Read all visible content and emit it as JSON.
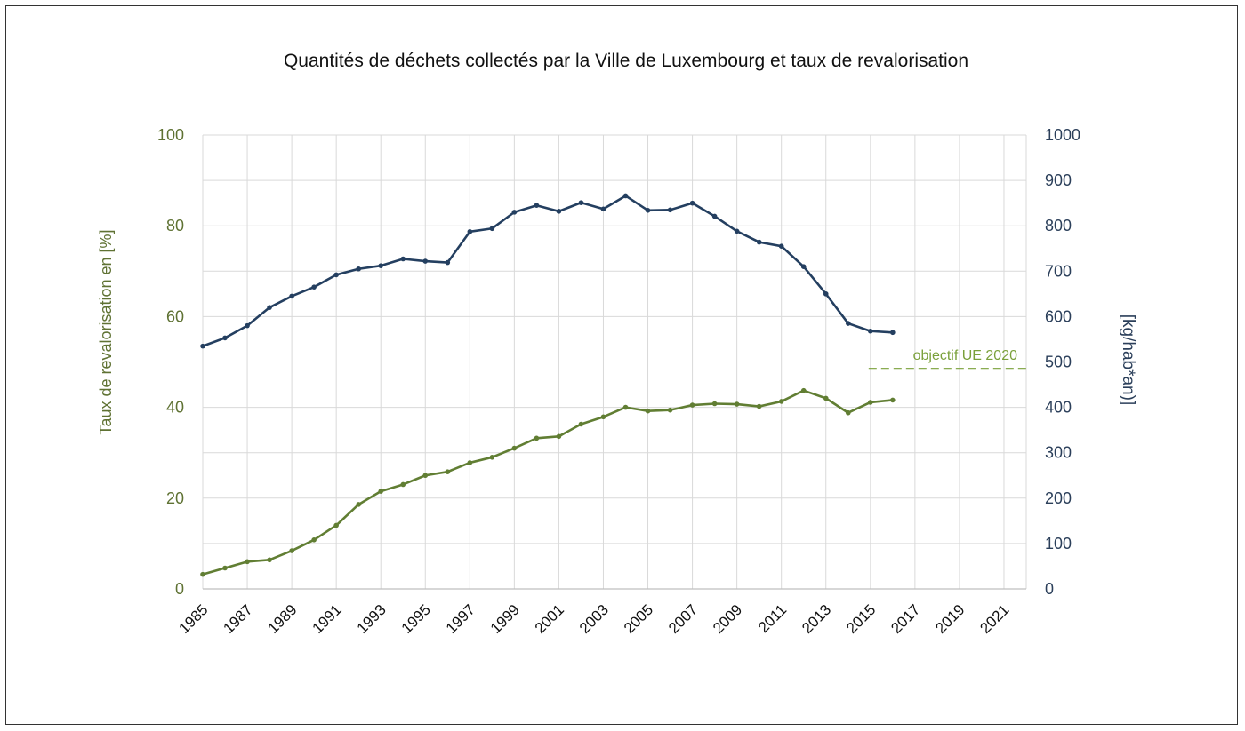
{
  "chart_data": {
    "type": "line",
    "title": "Quantités de déchets collectés par la Ville de Luxembourg et taux de revalorisation",
    "ylabel_left": "Taux de revalorisation en [%]",
    "ylabel_right": "[kg/hab*an)]",
    "ylim_left": [
      0,
      100
    ],
    "ylim_right": [
      0,
      1000
    ],
    "xlim": [
      1985,
      2022
    ],
    "grid": true,
    "left_ticks": [
      "0",
      "20",
      "40",
      "60",
      "80",
      "100"
    ],
    "right_ticks": [
      "0",
      "100",
      "200",
      "300",
      "400",
      "500",
      "600",
      "700",
      "800",
      "900",
      "1000"
    ],
    "x_ticks": [
      "1985",
      "1987",
      "1989",
      "1991",
      "1993",
      "1995",
      "1997",
      "1999",
      "2001",
      "2003",
      "2005",
      "2007",
      "2009",
      "2011",
      "2013",
      "2015",
      "2017",
      "2019",
      "2021"
    ],
    "x": [
      1985,
      1986,
      1987,
      1988,
      1989,
      1990,
      1991,
      1992,
      1993,
      1994,
      1995,
      1996,
      1997,
      1998,
      1999,
      2000,
      2001,
      2002,
      2003,
      2004,
      2005,
      2006,
      2007,
      2008,
      2009,
      2010,
      2011,
      2012,
      2013,
      2014,
      2015,
      2016
    ],
    "series": [
      {
        "axis": "right",
        "color": "#243f60",
        "values": [
          535,
          553,
          580,
          620,
          645,
          665,
          692,
          705,
          712,
          727,
          722,
          719,
          787,
          794,
          830,
          845,
          832,
          851,
          837,
          866,
          834,
          835,
          850,
          821,
          788,
          764,
          755,
          710,
          650,
          585,
          568,
          565
        ]
      },
      {
        "axis": "left",
        "color": "#617e33",
        "values": [
          3.2,
          4.6,
          6.0,
          6.4,
          8.4,
          10.8,
          14.0,
          18.6,
          21.5,
          23.0,
          25.0,
          25.8,
          27.8,
          29.0,
          31.0,
          33.2,
          33.6,
          36.3,
          37.9,
          40.0,
          39.2,
          39.4,
          40.5,
          40.8,
          40.7,
          40.2,
          41.3,
          43.7,
          42.0,
          38.8,
          41.1,
          41.6
        ]
      }
    ],
    "reference_line": {
      "label": "objectif UE 2020",
      "axis": "left",
      "value": 48.5,
      "x_start": 2015,
      "x_end": 2022,
      "color": "#7aa03a",
      "style": "dashed"
    }
  }
}
